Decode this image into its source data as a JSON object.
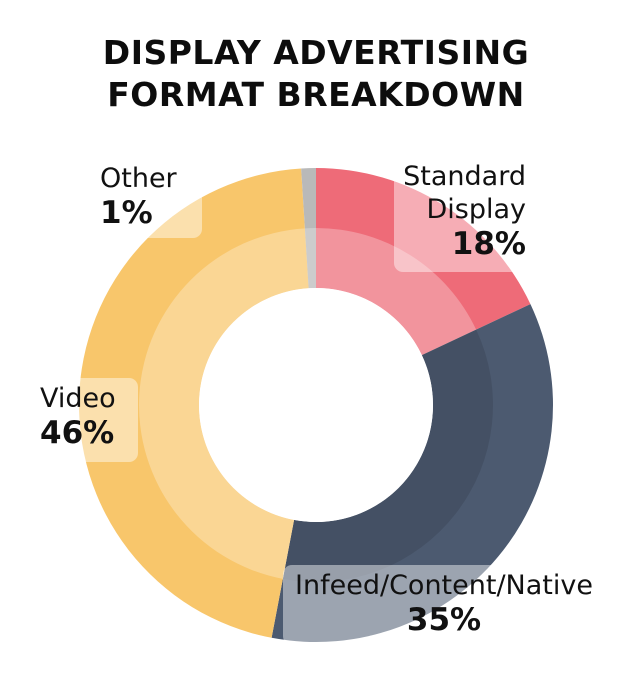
{
  "title": {
    "line1": "DISPLAY ADVERTISING",
    "line2": "FORMAT BREAKDOWN"
  },
  "chart_data": {
    "type": "pie",
    "style": "donut",
    "title": "DISPLAY ADVERTISING FORMAT BREAKDOWN",
    "categories": [
      "Standard Display",
      "Infeed/Content/Native",
      "Video",
      "Other"
    ],
    "values": [
      18,
      35,
      46,
      1
    ],
    "value_labels": [
      "18%",
      "35%",
      "46%",
      "1%"
    ],
    "label_lines": [
      [
        "Standard",
        "Display"
      ],
      [
        "Infeed/Content/Native"
      ],
      [
        "Video"
      ],
      [
        "Other"
      ]
    ],
    "colors": [
      "#ee6b78",
      "#4c5a70",
      "#f8c66b",
      "#b9b9b9"
    ]
  }
}
